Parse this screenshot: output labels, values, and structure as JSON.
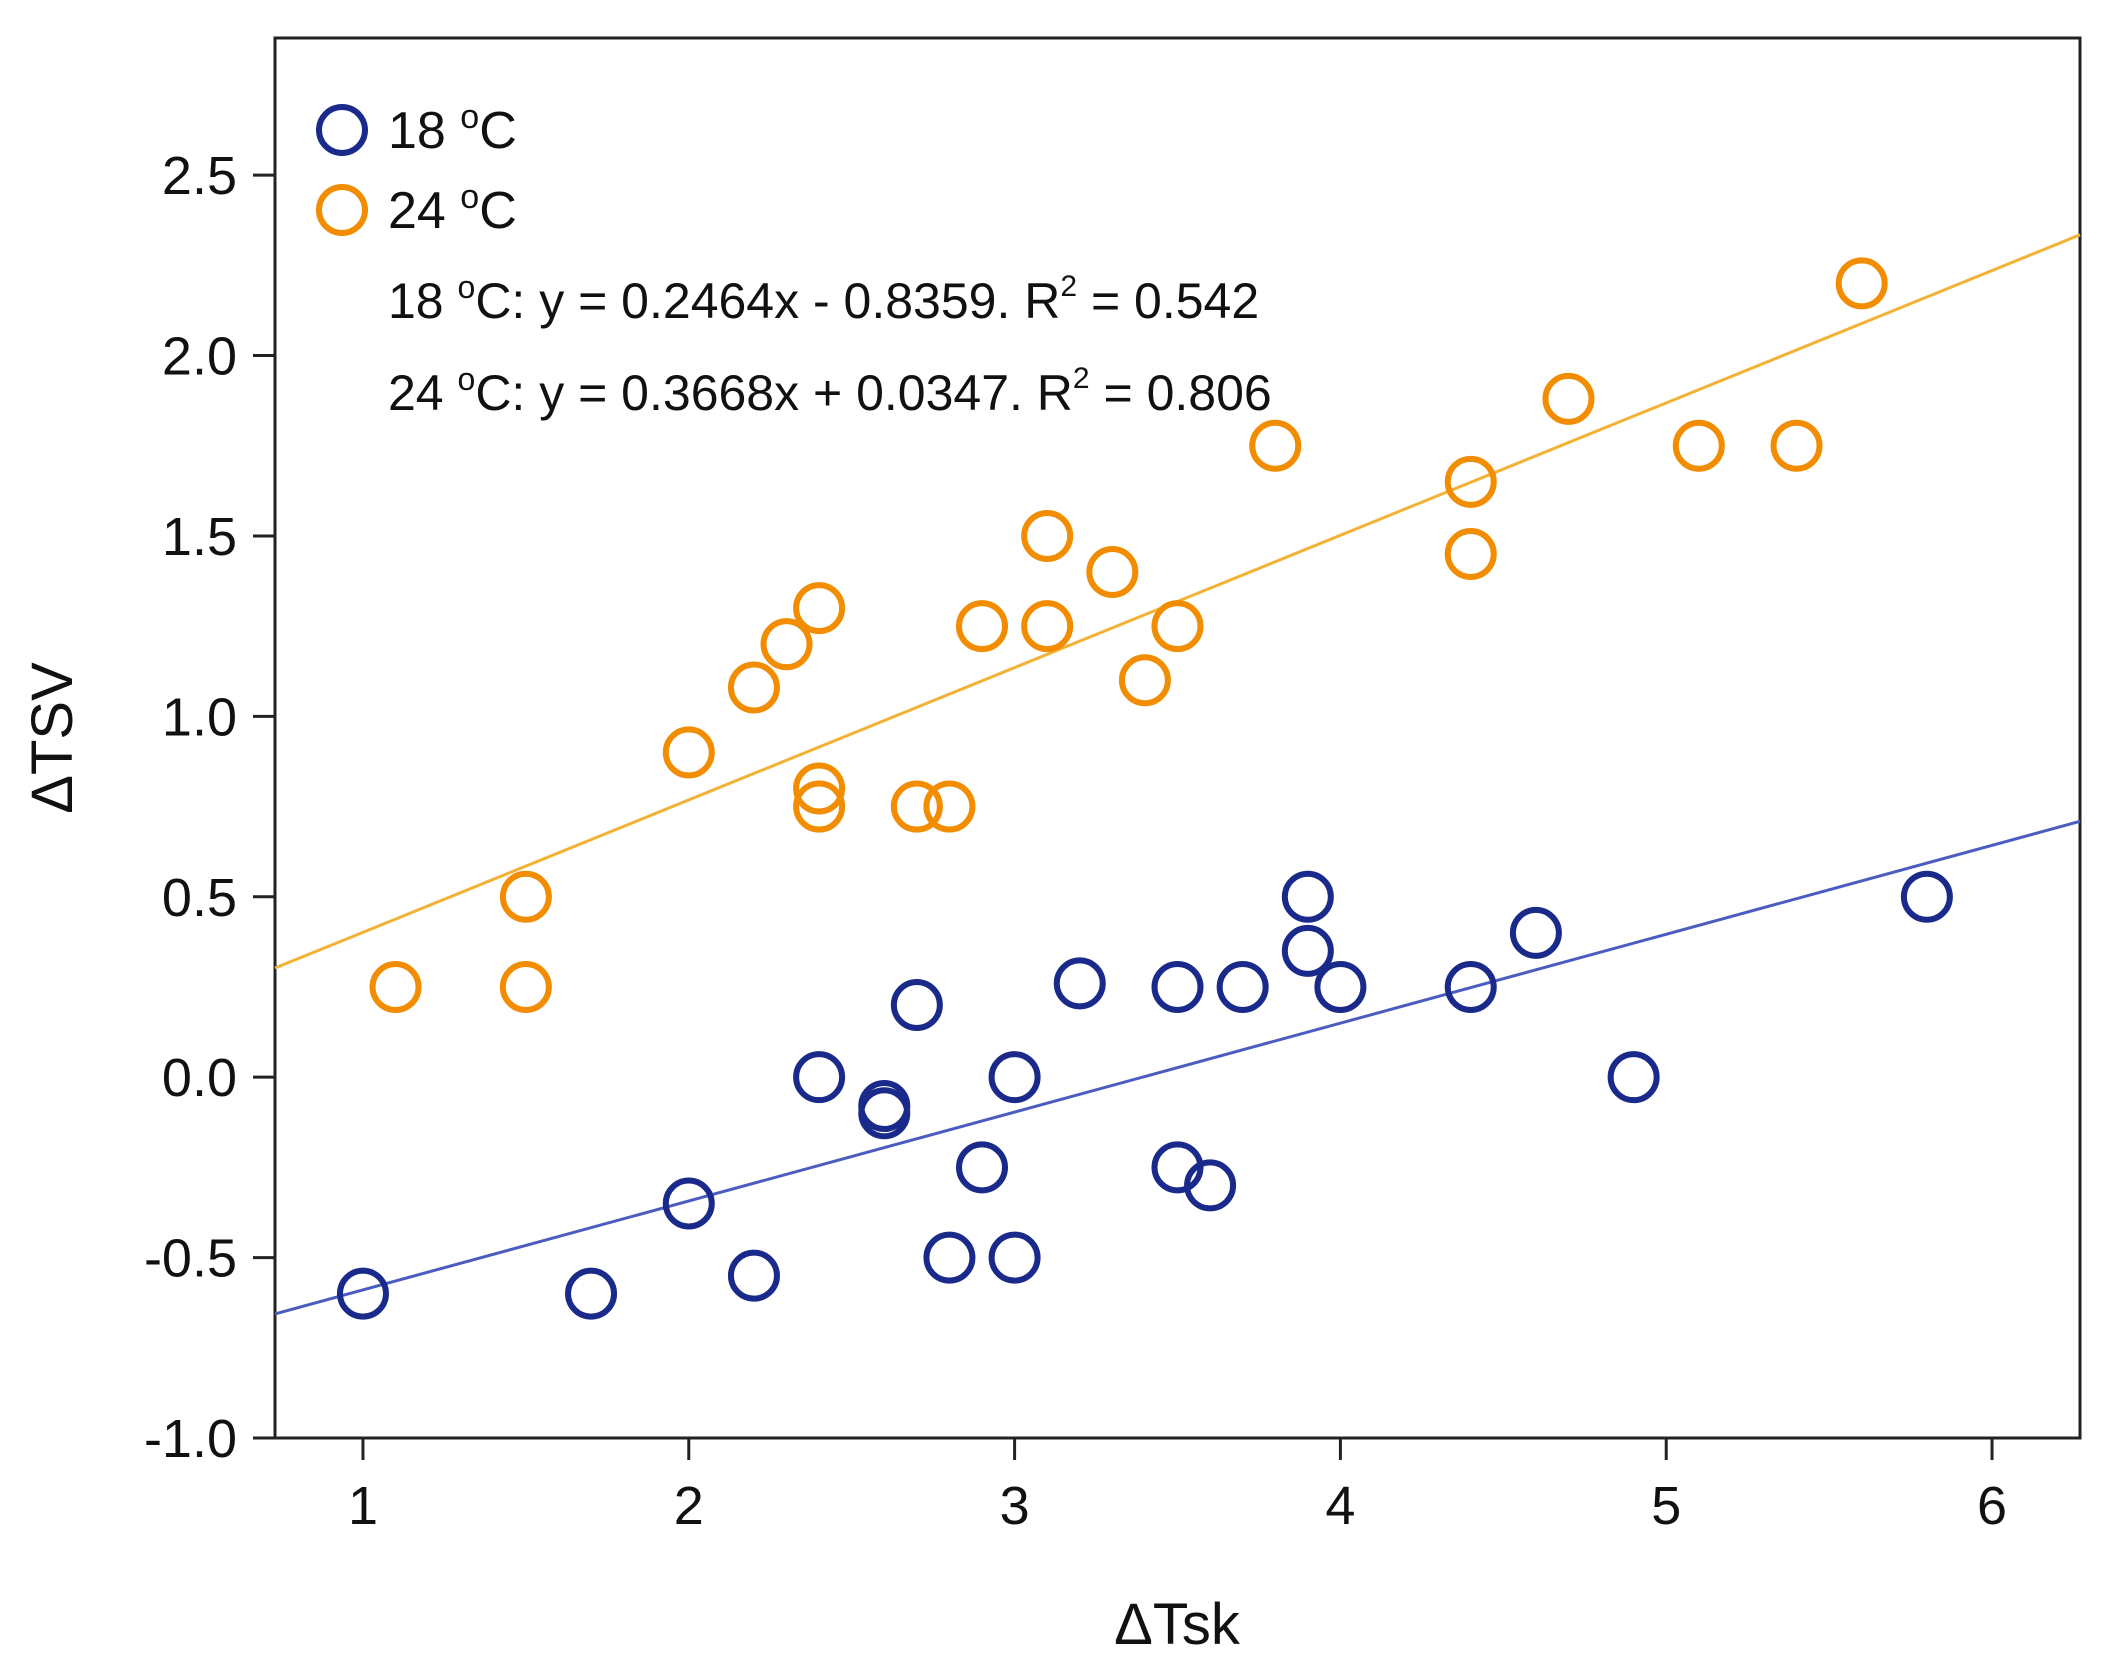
{
  "chart_data": {
    "type": "scatter",
    "title": "",
    "xlabel": "ΔTsk",
    "ylabel": "ΔTSV",
    "xlim": [
      0.73,
      6.27
    ],
    "ylim": [
      -1.0,
      2.88
    ],
    "xticks": [
      1,
      2,
      3,
      4,
      5,
      6
    ],
    "xtick_labels": [
      "1",
      "2",
      "3",
      "4",
      "5",
      "6"
    ],
    "yticks": [
      -1.0,
      -0.5,
      0.0,
      0.5,
      1.0,
      1.5,
      2.0,
      2.5
    ],
    "ytick_labels": [
      "-1.0",
      "-0.5",
      "0.0",
      "0.5",
      "1.0",
      "1.5",
      "2.0",
      "2.5"
    ],
    "legend_position": "top-left",
    "series": [
      {
        "name": "18 °C",
        "color": "#1a2a8a",
        "line_color": "#4a5cc0",
        "slope": 0.2464,
        "intercept": -0.8359,
        "points": [
          [
            1.0,
            -0.6
          ],
          [
            1.7,
            -0.6
          ],
          [
            2.0,
            -0.35
          ],
          [
            2.2,
            -0.55
          ],
          [
            2.4,
            0.0
          ],
          [
            2.6,
            -0.08
          ],
          [
            2.6,
            -0.1
          ],
          [
            2.7,
            0.2
          ],
          [
            2.8,
            -0.5
          ],
          [
            2.9,
            -0.25
          ],
          [
            3.0,
            0.0
          ],
          [
            3.0,
            -0.5
          ],
          [
            3.2,
            0.26
          ],
          [
            3.5,
            0.25
          ],
          [
            3.5,
            -0.25
          ],
          [
            3.6,
            -0.3
          ],
          [
            3.7,
            0.25
          ],
          [
            3.9,
            0.5
          ],
          [
            3.9,
            0.35
          ],
          [
            4.0,
            0.25
          ],
          [
            4.4,
            0.25
          ],
          [
            4.6,
            0.4
          ],
          [
            4.9,
            0.0
          ],
          [
            5.8,
            0.5
          ]
        ]
      },
      {
        "name": "24 °C",
        "color": "#f28c00",
        "line_color": "#f2b236",
        "slope": 0.3668,
        "intercept": 0.0347,
        "points": [
          [
            1.1,
            0.25
          ],
          [
            1.5,
            0.5
          ],
          [
            1.5,
            0.25
          ],
          [
            2.0,
            0.9
          ],
          [
            2.2,
            1.08
          ],
          [
            2.3,
            1.2
          ],
          [
            2.4,
            1.3
          ],
          [
            2.4,
            0.8
          ],
          [
            2.4,
            0.75
          ],
          [
            2.7,
            0.75
          ],
          [
            2.8,
            0.75
          ],
          [
            2.9,
            1.25
          ],
          [
            3.1,
            1.5
          ],
          [
            3.1,
            1.25
          ],
          [
            3.3,
            1.4
          ],
          [
            3.4,
            1.1
          ],
          [
            3.5,
            1.25
          ],
          [
            3.8,
            1.75
          ],
          [
            4.4,
            1.65
          ],
          [
            4.4,
            1.45
          ],
          [
            4.7,
            1.88
          ],
          [
            5.1,
            1.75
          ],
          [
            5.4,
            1.75
          ],
          [
            5.6,
            2.2
          ]
        ]
      }
    ],
    "annotations": {
      "eq1": {
        "label": "18 ",
        "deg": "o",
        "c": "C: y = 0.2464x  -  0.8359. R",
        "sup": "2",
        "rest": " = 0.542"
      },
      "eq2": {
        "label": "24 ",
        "deg": "o",
        "c": "C: y = 0.3668x + 0.0347. R",
        "sup": "2",
        "rest": " = 0.806"
      }
    },
    "legend": [
      {
        "label": "18 ",
        "deg": "o",
        "unit": "C"
      },
      {
        "label": "24 ",
        "deg": "o",
        "unit": "C"
      }
    ]
  }
}
